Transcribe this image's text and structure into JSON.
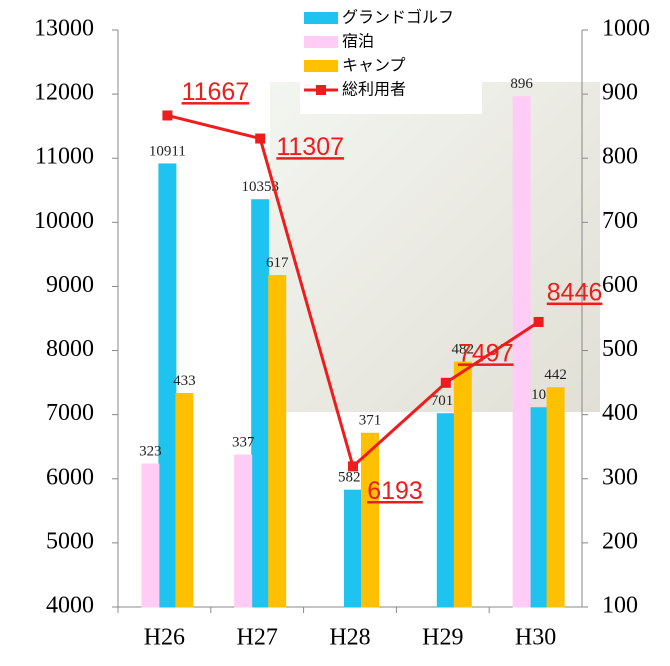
{
  "chart_data": {
    "type": "bar",
    "categories": [
      "H26",
      "H27",
      "H28",
      "H29",
      "H30"
    ],
    "series": [
      {
        "name": "グランドゴルフ",
        "color": "#1ec3ef",
        "values": [
          10911,
          10353,
          5822,
          7015,
          7108
        ]
      },
      {
        "name": "宿泊",
        "color": "#ffccf5",
        "axis": "y2",
        "values": [
          323,
          337,
          100,
          100,
          896
        ]
      },
      {
        "name": "キャンプ",
        "color": "#ffc000",
        "axis": "y2",
        "values": [
          433,
          617,
          371,
          482,
          442
        ]
      },
      {
        "name": "総利用者",
        "type": "line",
        "color": "#ee1c1c",
        "values": [
          11667,
          11307,
          6193,
          7497,
          8446
        ]
      }
    ],
    "ylim": [
      4000,
      13000
    ],
    "yticks": [
      4000,
      5000,
      6000,
      7000,
      8000,
      9000,
      10000,
      11000,
      12000,
      13000
    ],
    "y2lim": [
      100,
      1000
    ],
    "y2ticks": [
      100,
      200,
      300,
      400,
      500,
      600,
      700,
      800,
      900,
      1000
    ]
  }
}
